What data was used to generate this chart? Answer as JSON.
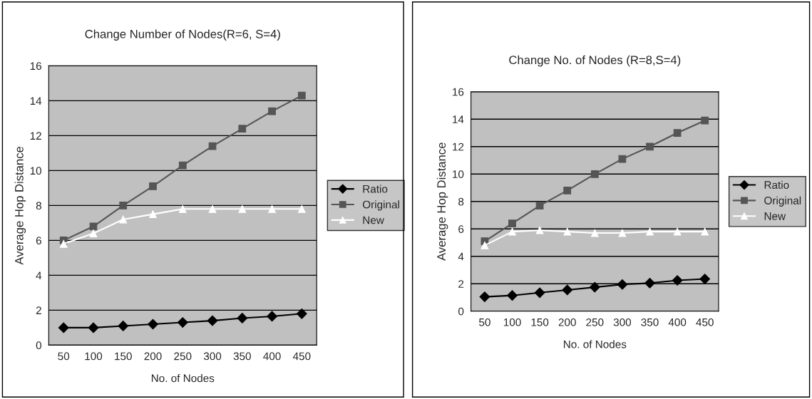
{
  "chart_data": [
    {
      "type": "line",
      "title": "Change Number of Nodes(R=6, S=4)",
      "xlabel": "No. of Nodes",
      "ylabel": "Average Hop Distance",
      "categories": [
        "50",
        "100",
        "150",
        "200",
        "250",
        "300",
        "350",
        "400",
        "450"
      ],
      "ylim": [
        0,
        16
      ],
      "yticks": [
        0,
        2,
        4,
        6,
        8,
        10,
        12,
        14,
        16
      ],
      "grid": "y",
      "legend": "right",
      "series": [
        {
          "name": "Ratio",
          "color": "#000000",
          "marker": "diamond",
          "values": [
            1.0,
            1.0,
            1.1,
            1.2,
            1.3,
            1.4,
            1.55,
            1.65,
            1.8
          ]
        },
        {
          "name": "Original",
          "color": "#555555",
          "marker": "square",
          "values": [
            6.0,
            6.8,
            8.0,
            9.1,
            10.3,
            11.4,
            12.4,
            13.4,
            14.3
          ]
        },
        {
          "name": "New",
          "color": "#ffffff",
          "marker": "triangle",
          "values": [
            5.8,
            6.4,
            7.2,
            7.5,
            7.8,
            7.8,
            7.8,
            7.8,
            7.8
          ]
        }
      ]
    },
    {
      "type": "line",
      "title": "Change No. of Nodes (R=8,S=4)",
      "xlabel": "No. of Nodes",
      "ylabel": "Average Hop Distance",
      "categories": [
        "50",
        "100",
        "150",
        "200",
        "250",
        "300",
        "350",
        "400",
        "450"
      ],
      "ylim": [
        0,
        16
      ],
      "yticks": [
        0,
        2,
        4,
        6,
        8,
        10,
        12,
        14,
        16
      ],
      "grid": "y",
      "legend": "right",
      "series": [
        {
          "name": "Ratio",
          "color": "#000000",
          "marker": "diamond",
          "values": [
            1.05,
            1.15,
            1.35,
            1.55,
            1.75,
            1.95,
            2.05,
            2.25,
            2.35
          ]
        },
        {
          "name": "Original",
          "color": "#555555",
          "marker": "square",
          "values": [
            5.1,
            6.4,
            7.7,
            8.8,
            10.0,
            11.1,
            12.0,
            13.0,
            13.9
          ]
        },
        {
          "name": "New",
          "color": "#ffffff",
          "marker": "triangle",
          "values": [
            4.8,
            5.8,
            5.9,
            5.8,
            5.7,
            5.7,
            5.8,
            5.8,
            5.8
          ]
        }
      ]
    }
  ]
}
